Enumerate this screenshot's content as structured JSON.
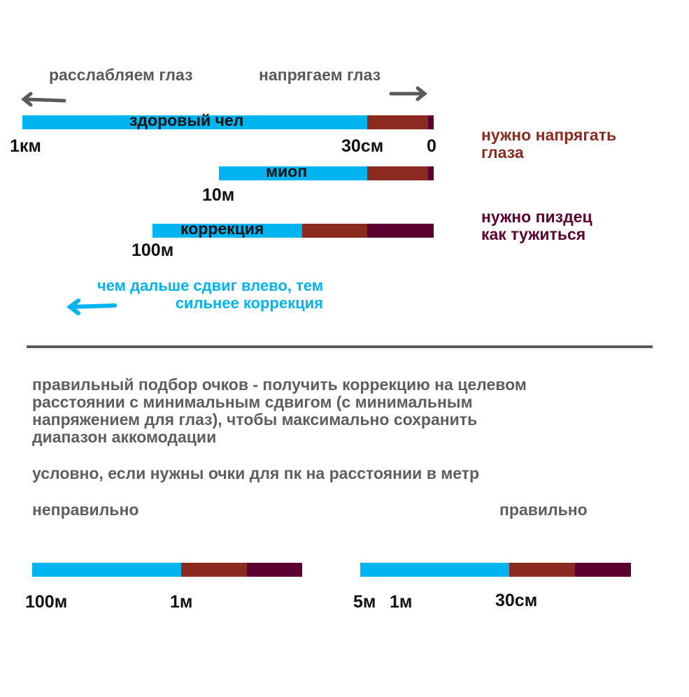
{
  "top": {
    "relax": "расслабляем глаз",
    "strain": "напрягаем глаз"
  },
  "rows": [
    {
      "label": "здоровый чел",
      "ticks": [
        "1км",
        "30см",
        "0"
      ]
    },
    {
      "label": "миоп",
      "ticks": [
        "10м"
      ]
    },
    {
      "label": "коррекция",
      "ticks": [
        "100м"
      ]
    }
  ],
  "notes": {
    "strain": "нужно напрягать глаза",
    "strain_line1": "нужно напрягать",
    "strain_line2": "глаза",
    "hard_line1": "нужно пиздец",
    "hard_line2": "как тужиться"
  },
  "shift": {
    "line1": "чем дальше сдвиг влево, тем",
    "line2": "сильнее коррекция"
  },
  "paragraph": [
    "правильный подбор очков - получить коррекцию на целевом",
    "расстоянии с минимальным сдвигом (с минимальным",
    "напряжением для глаз), чтобы максимально сохранить",
    "диапазон аккомодации"
  ],
  "example": "условно, если нужны очки для пк на расстоянии в метр",
  "wrong": {
    "title": "неправильно",
    "ticks": [
      "100м",
      "1м"
    ]
  },
  "right": {
    "title": "правильно",
    "ticks": [
      "5м",
      "1м",
      "30см"
    ]
  },
  "colors": {
    "relaxed": "#00b4ef",
    "strain": "#8b2a1e",
    "hard": "#5c0032",
    "text": "#5a5a5a"
  }
}
